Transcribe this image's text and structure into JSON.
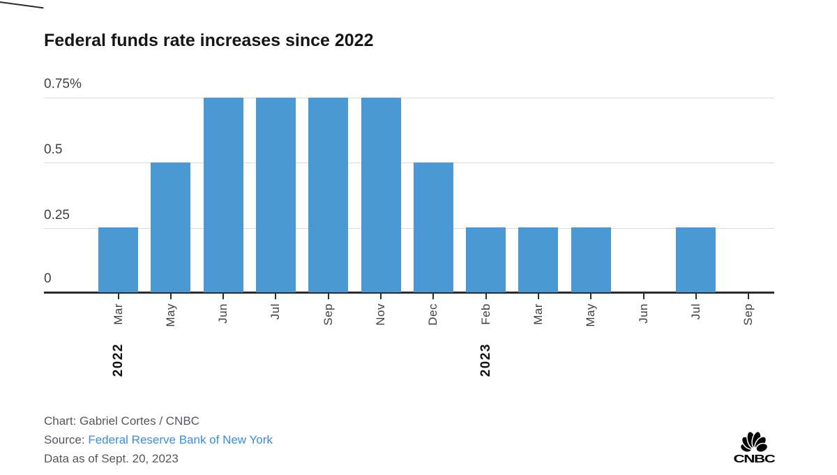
{
  "title": "Federal funds rate increases since 2022",
  "chart_data": {
    "type": "bar",
    "title": "Federal funds rate increases since 2022",
    "categories": [
      "Mar",
      "May",
      "Jun",
      "Jul",
      "Sep",
      "Nov",
      "Dec",
      "Feb",
      "Mar",
      "May",
      "Jun",
      "Jul",
      "Sep"
    ],
    "year_labels": [
      {
        "index": 0,
        "label": "2022"
      },
      {
        "index": 7,
        "label": "2023"
      }
    ],
    "values": [
      0.25,
      0.5,
      0.75,
      0.75,
      0.75,
      0.75,
      0.5,
      0.25,
      0.25,
      0.25,
      0,
      0.25,
      0
    ],
    "unit": "%",
    "ylim": [
      0,
      0.75
    ],
    "ytick_labels": [
      "0",
      "0.25",
      "0.5",
      "0.75%"
    ],
    "grid": true,
    "legend": "none",
    "bar_color": "#4a98d4",
    "axis_color": "#2b2b2b",
    "gridline_color": "#dadada"
  },
  "footer": {
    "chart_credit": "Chart: Gabriel Cortes / CNBC",
    "source_label": "Source: ",
    "source_link": "Federal Reserve Bank of New York",
    "data_as_of": "Data as of Sept. 20, 2023"
  },
  "logo": {
    "brand": "CNBC"
  }
}
